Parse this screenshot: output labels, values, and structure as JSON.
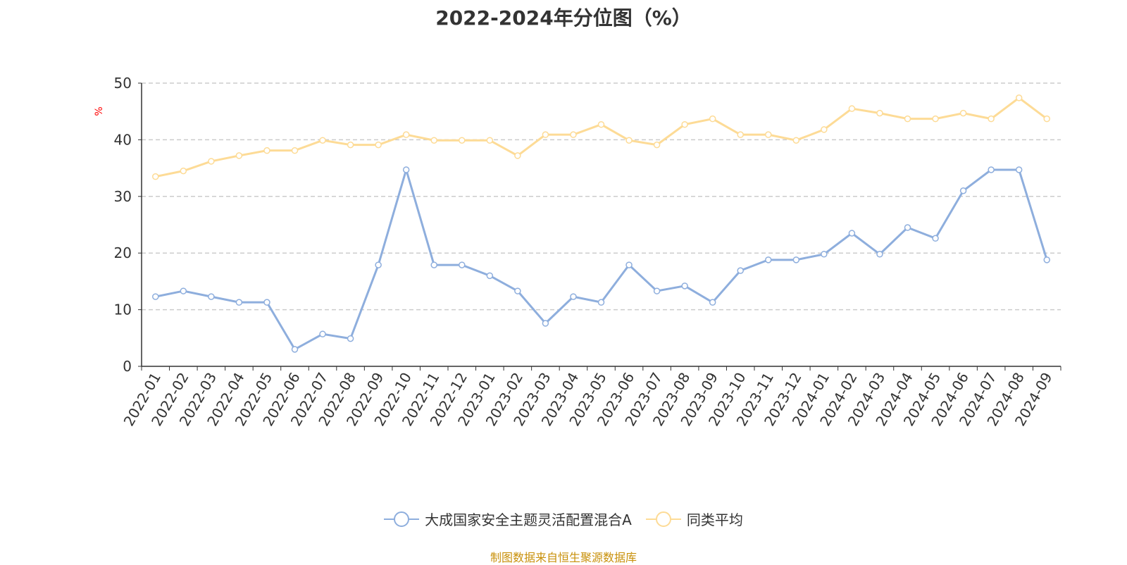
{
  "chart_data": {
    "type": "line",
    "title": "2022-2024年分位图（%）",
    "ylabel": "%",
    "xlabel": "",
    "ylim": [
      0,
      50
    ],
    "yticks": [
      0,
      10,
      20,
      30,
      40,
      50
    ],
    "grid": true,
    "legend_position": "bottom",
    "categories": [
      "2022-01",
      "2022-02",
      "2022-03",
      "2022-04",
      "2022-05",
      "2022-06",
      "2022-07",
      "2022-08",
      "2022-09",
      "2022-10",
      "2022-11",
      "2022-12",
      "2023-01",
      "2023-02",
      "2023-03",
      "2023-04",
      "2023-05",
      "2023-06",
      "2023-07",
      "2023-08",
      "2023-09",
      "2023-10",
      "2023-11",
      "2023-12",
      "2024-01",
      "2024-02",
      "2024-03",
      "2024-04",
      "2024-05",
      "2024-06",
      "2024-07",
      "2024-08",
      "2024-09"
    ],
    "series": [
      {
        "name": "大成国家安全主题灵活配置混合A",
        "color": "#8eaedd",
        "values": [
          12.3,
          13.3,
          12.3,
          11.3,
          11.3,
          3.0,
          5.7,
          4.9,
          17.9,
          34.7,
          17.9,
          17.9,
          16.0,
          13.3,
          7.6,
          12.3,
          11.3,
          17.9,
          13.3,
          14.2,
          11.3,
          16.9,
          18.8,
          18.8,
          19.8,
          23.5,
          19.8,
          24.5,
          22.6,
          31.0,
          34.7,
          34.7,
          18.8
        ]
      },
      {
        "name": "同类平均",
        "color": "#fddb96",
        "values": [
          33.5,
          34.5,
          36.2,
          37.2,
          38.1,
          38.1,
          39.9,
          39.1,
          39.1,
          40.9,
          39.9,
          39.9,
          39.9,
          37.2,
          40.9,
          40.9,
          42.7,
          39.9,
          39.1,
          42.7,
          43.7,
          40.9,
          40.9,
          39.9,
          41.8,
          45.5,
          44.7,
          43.7,
          43.7,
          44.7,
          43.7,
          47.4,
          43.7
        ]
      }
    ]
  },
  "source": "制图数据来自恒生聚源数据库"
}
